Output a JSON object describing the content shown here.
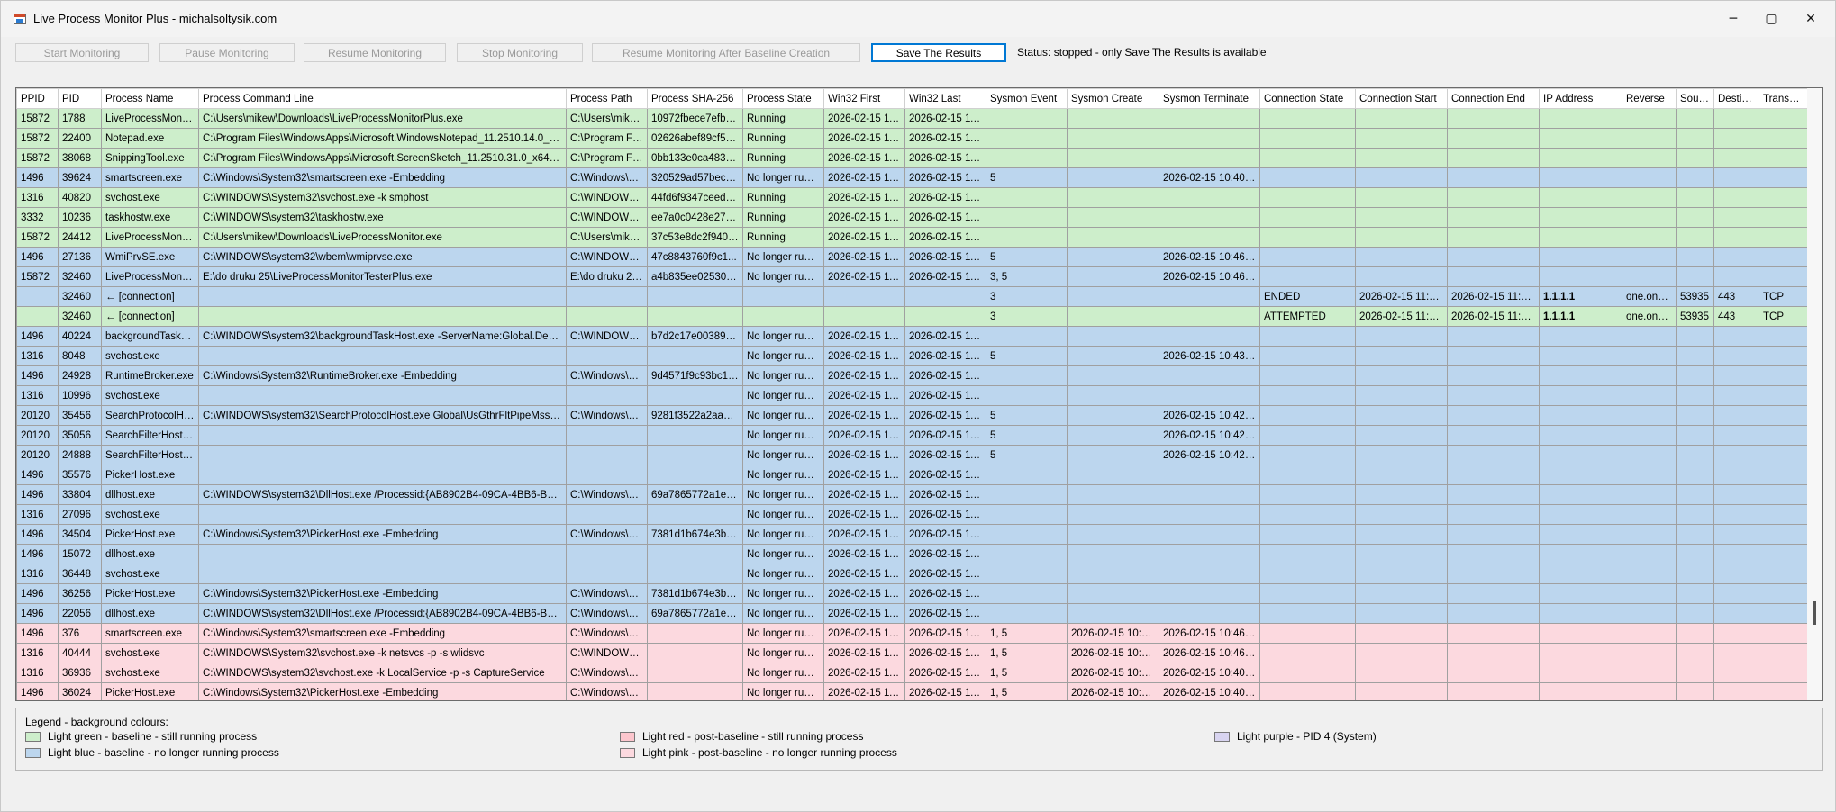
{
  "window": {
    "title": "Live Process Monitor Plus - michalsoltysik.com",
    "minimize_icon": "minimize-icon",
    "maximize_icon": "maximize-icon",
    "close_icon": "close-icon"
  },
  "toolbar": {
    "start_label": "Start Monitoring",
    "pause_label": "Pause Monitoring",
    "resume_label": "Resume Monitoring",
    "stop_label": "Stop Monitoring",
    "resume_after_label": "Resume Monitoring After Baseline Creation",
    "save_label": "Save The Results",
    "status": "Status: stopped - only Save The Results is available"
  },
  "table": {
    "columns": [
      "PPID",
      "PID",
      "Process Name",
      "Process Command Line",
      "Process Path",
      "Process SHA-256",
      "Process State",
      "Win32 First",
      "Win32 Last",
      "Sysmon Event",
      "Sysmon Create",
      "Sysmon Terminate",
      "Connection State",
      "Connection Start",
      "Connection End",
      "IP Address",
      "Reverse",
      "Source",
      "Destinati",
      "Transport"
    ],
    "rows": [
      {
        "bg": "green",
        "cells": [
          "15872",
          "1788",
          "LiveProcessMonito...",
          "C:\\Users\\mikew\\Downloads\\LiveProcessMonitorPlus.exe",
          "C:\\Users\\mike...",
          "10972fbece7efb6f...",
          "Running",
          "2026-02-15 11:...",
          "2026-02-15 11:...",
          "",
          "",
          "",
          "",
          "",
          "",
          "",
          "",
          "",
          "",
          ""
        ]
      },
      {
        "bg": "green",
        "cells": [
          "15872",
          "22400",
          "Notepad.exe",
          "C:\\Program Files\\WindowsApps\\Microsoft.WindowsNotepad_11.2510.14.0_x64__...",
          "C:\\Program File...",
          "02626abef89cf5a3...",
          "Running",
          "2026-02-15 11:...",
          "2026-02-15 11:...",
          "",
          "",
          "",
          "",
          "",
          "",
          "",
          "",
          "",
          "",
          ""
        ]
      },
      {
        "bg": "green",
        "cells": [
          "15872",
          "38068",
          "SnippingTool.exe",
          "C:\\Program Files\\WindowsApps\\Microsoft.ScreenSketch_11.2510.31.0_x64__8w...",
          "C:\\Program File...",
          "0bb133e0ca483a9...",
          "Running",
          "2026-02-15 11:...",
          "2026-02-15 11:...",
          "",
          "",
          "",
          "",
          "",
          "",
          "",
          "",
          "",
          "",
          ""
        ]
      },
      {
        "bg": "blue",
        "cells": [
          "1496",
          "39624",
          "smartscreen.exe",
          "C:\\Windows\\System32\\smartscreen.exe -Embedding",
          "C:\\Windows\\S...",
          "320529ad57bec40...",
          "No longer runni...",
          "2026-02-15 11:...",
          "2026-02-15 11:...",
          "5",
          "",
          "2026-02-15 10:40:57",
          "",
          "",
          "",
          "",
          "",
          "",
          "",
          ""
        ]
      },
      {
        "bg": "green",
        "cells": [
          "1316",
          "40820",
          "svchost.exe",
          "C:\\WINDOWS\\System32\\svchost.exe -k smphost",
          "C:\\WINDOWS\\...",
          "44fd6f9347ceed57...",
          "Running",
          "2026-02-15 11:...",
          "2026-02-15 11:...",
          "",
          "",
          "",
          "",
          "",
          "",
          "",
          "",
          "",
          "",
          ""
        ]
      },
      {
        "bg": "green",
        "cells": [
          "3332",
          "10236",
          "taskhostw.exe",
          "C:\\WINDOWS\\system32\\taskhostw.exe",
          "C:\\WINDOWS\\...",
          "ee7a0c0428e27e0...",
          "Running",
          "2026-02-15 11:...",
          "2026-02-15 11:...",
          "",
          "",
          "",
          "",
          "",
          "",
          "",
          "",
          "",
          "",
          ""
        ]
      },
      {
        "bg": "green",
        "cells": [
          "15872",
          "24412",
          "LiveProcessMonito...",
          "C:\\Users\\mikew\\Downloads\\LiveProcessMonitor.exe",
          "C:\\Users\\mike...",
          "37c53e8dc2f940f1...",
          "Running",
          "2026-02-15 11:...",
          "2026-02-15 11:...",
          "",
          "",
          "",
          "",
          "",
          "",
          "",
          "",
          "",
          "",
          ""
        ]
      },
      {
        "bg": "blue",
        "cells": [
          "1496",
          "27136",
          "WmiPrvSE.exe",
          "C:\\WINDOWS\\system32\\wbem\\wmiprvse.exe",
          "C:\\WINDOWS\\...",
          "47c8843760f9c1...",
          "No longer runni...",
          "2026-02-15 11:...",
          "2026-02-15 11:...",
          "5",
          "",
          "2026-02-15 10:46:32",
          "",
          "",
          "",
          "",
          "",
          "",
          "",
          ""
        ]
      },
      {
        "bg": "blue",
        "cells": [
          "15872",
          "32460",
          "LiveProcessMonito...",
          "E:\\do druku 25\\LiveProcessMonitorTesterPlus.exe",
          "E:\\do druku 25...",
          "a4b835ee0253077...",
          "No longer runni...",
          "2026-02-15 11:...",
          "2026-02-15 11:...",
          "3, 5",
          "",
          "2026-02-15 10:46:51",
          "",
          "",
          "",
          "",
          "",
          "",
          "",
          ""
        ]
      },
      {
        "bg": "blue",
        "cells": [
          "",
          "32460",
          "   ← [connection]",
          "",
          "",
          "",
          "",
          "",
          "",
          "3",
          "",
          "",
          "ENDED",
          "2026-02-15 11:43...",
          "2026-02-15 11:46...",
          "1.1.1.1",
          "one.one...",
          "53935",
          "443",
          "TCP"
        ]
      },
      {
        "bg": "green",
        "cells": [
          "",
          "32460",
          "   ← [connection]",
          "",
          "",
          "",
          "",
          "",
          "",
          "3",
          "",
          "",
          "ATTEMPTED",
          "2026-02-15 11:43...",
          "2026-02-15 11:43...",
          "1.1.1.1",
          "one.one...",
          "53935",
          "443",
          "TCP"
        ]
      },
      {
        "bg": "blue",
        "cells": [
          "1496",
          "40224",
          "backgroundTaskH...",
          "C:\\WINDOWS\\system32\\backgroundTaskHost.exe -ServerName:Global.Desktop...",
          "C:\\WINDOWS\\...",
          "b7d2c17e0038945...",
          "No longer runni...",
          "2026-02-15 11:...",
          "2026-02-15 11:...",
          "",
          "",
          "",
          "",
          "",
          "",
          "",
          "",
          "",
          "",
          ""
        ]
      },
      {
        "bg": "blue",
        "cells": [
          "1316",
          "8048",
          "svchost.exe",
          "",
          "",
          "",
          "No longer runni...",
          "2026-02-15 11:...",
          "2026-02-15 11:...",
          "5",
          "",
          "2026-02-15 10:43:17",
          "",
          "",
          "",
          "",
          "",
          "",
          "",
          ""
        ]
      },
      {
        "bg": "blue",
        "cells": [
          "1496",
          "24928",
          "RuntimeBroker.exe",
          "C:\\Windows\\System32\\RuntimeBroker.exe -Embedding",
          "C:\\Windows\\S...",
          "9d4571f9c93bc1cf...",
          "No longer runni...",
          "2026-02-15 11:...",
          "2026-02-15 11:...",
          "",
          "",
          "",
          "",
          "",
          "",
          "",
          "",
          "",
          "",
          ""
        ]
      },
      {
        "bg": "blue",
        "cells": [
          "1316",
          "10996",
          "svchost.exe",
          "",
          "",
          "",
          "No longer runni...",
          "2026-02-15 11:...",
          "2026-02-15 11:...",
          "",
          "",
          "",
          "",
          "",
          "",
          "",
          "",
          "",
          "",
          ""
        ]
      },
      {
        "bg": "blue",
        "cells": [
          "20120",
          "35456",
          "SearchProtocolHo...",
          "C:\\WINDOWS\\system32\\SearchProtocolHost.exe Global\\UsGthrFltPipeMssGthrP...",
          "C:\\Windows\\S...",
          "9281f3522a2aa12f...",
          "No longer runni...",
          "2026-02-15 11:...",
          "2026-02-15 11:...",
          "5",
          "",
          "2026-02-15 10:42:55",
          "",
          "",
          "",
          "",
          "",
          "",
          "",
          ""
        ]
      },
      {
        "bg": "blue",
        "cells": [
          "20120",
          "35056",
          "SearchFilterHost.exe",
          "",
          "",
          "",
          "No longer runni...",
          "2026-02-15 11:...",
          "2026-02-15 11:...",
          "5",
          "",
          "2026-02-15 10:42:50",
          "",
          "",
          "",
          "",
          "",
          "",
          "",
          ""
        ]
      },
      {
        "bg": "blue",
        "cells": [
          "20120",
          "24888",
          "SearchFilterHost.exe",
          "",
          "",
          "",
          "No longer runni...",
          "2026-02-15 11:...",
          "2026-02-15 11:...",
          "5",
          "",
          "2026-02-15 10:42:50",
          "",
          "",
          "",
          "",
          "",
          "",
          "",
          ""
        ]
      },
      {
        "bg": "blue",
        "cells": [
          "1496",
          "35576",
          "PickerHost.exe",
          "",
          "",
          "",
          "No longer runni...",
          "2026-02-15 11:...",
          "2026-02-15 11:...",
          "",
          "",
          "",
          "",
          "",
          "",
          "",
          "",
          "",
          "",
          ""
        ]
      },
      {
        "bg": "blue",
        "cells": [
          "1496",
          "33804",
          "dllhost.exe",
          "C:\\WINDOWS\\system32\\DllHost.exe /Processid:{AB8902B4-09CA-4BB6-B78D-A...",
          "C:\\Windows\\S...",
          "69a7865772a1ea6...",
          "No longer runni...",
          "2026-02-15 11:...",
          "2026-02-15 11:...",
          "",
          "",
          "",
          "",
          "",
          "",
          "",
          "",
          "",
          "",
          ""
        ]
      },
      {
        "bg": "blue",
        "cells": [
          "1316",
          "27096",
          "svchost.exe",
          "",
          "",
          "",
          "No longer runni...",
          "2026-02-15 11:...",
          "2026-02-15 11:...",
          "",
          "",
          "",
          "",
          "",
          "",
          "",
          "",
          "",
          "",
          ""
        ]
      },
      {
        "bg": "blue",
        "cells": [
          "1496",
          "34504",
          "PickerHost.exe",
          "C:\\Windows\\System32\\PickerHost.exe -Embedding",
          "C:\\Windows\\S...",
          "7381d1b674e3be4...",
          "No longer runni...",
          "2026-02-15 11:...",
          "2026-02-15 11:...",
          "",
          "",
          "",
          "",
          "",
          "",
          "",
          "",
          "",
          "",
          ""
        ]
      },
      {
        "bg": "blue",
        "cells": [
          "1496",
          "15072",
          "dllhost.exe",
          "",
          "",
          "",
          "No longer runni...",
          "2026-02-15 11:...",
          "2026-02-15 11:...",
          "",
          "",
          "",
          "",
          "",
          "",
          "",
          "",
          "",
          "",
          ""
        ]
      },
      {
        "bg": "blue",
        "cells": [
          "1316",
          "36448",
          "svchost.exe",
          "",
          "",
          "",
          "No longer runni...",
          "2026-02-15 11:...",
          "2026-02-15 11:...",
          "",
          "",
          "",
          "",
          "",
          "",
          "",
          "",
          "",
          "",
          ""
        ]
      },
      {
        "bg": "blue",
        "cells": [
          "1496",
          "36256",
          "PickerHost.exe",
          "C:\\Windows\\System32\\PickerHost.exe -Embedding",
          "C:\\Windows\\S...",
          "7381d1b674e3be4...",
          "No longer runni...",
          "2026-02-15 11:...",
          "2026-02-15 11:...",
          "",
          "",
          "",
          "",
          "",
          "",
          "",
          "",
          "",
          "",
          ""
        ]
      },
      {
        "bg": "blue",
        "cells": [
          "1496",
          "22056",
          "dllhost.exe",
          "C:\\WINDOWS\\system32\\DllHost.exe /Processid:{AB8902B4-09CA-4BB6-B78D-A...",
          "C:\\Windows\\S...",
          "69a7865772a1ea6...",
          "No longer runni...",
          "2026-02-15 11:...",
          "2026-02-15 11:...",
          "",
          "",
          "",
          "",
          "",
          "",
          "",
          "",
          "",
          "",
          ""
        ]
      },
      {
        "bg": "pink",
        "cells": [
          "1496",
          "376",
          "smartscreen.exe",
          "C:\\Windows\\System32\\smartscreen.exe -Embedding",
          "C:\\Windows\\S...",
          "",
          "No longer runni...",
          "2026-02-15 11:...",
          "2026-02-15 11:...",
          "1, 5",
          "2026-02-15 10:41...",
          "2026-02-15 10:46:40",
          "",
          "",
          "",
          "",
          "",
          "",
          "",
          ""
        ]
      },
      {
        "bg": "pink",
        "cells": [
          "1316",
          "40444",
          "svchost.exe",
          "C:\\WINDOWS\\System32\\svchost.exe -k netsvcs -p -s wlidsvc",
          "C:\\WINDOWS\\...",
          "",
          "No longer runni...",
          "2026-02-15 11:...",
          "2026-02-15 11:...",
          "1, 5",
          "2026-02-15 10:43...",
          "2026-02-15 10:46:20",
          "",
          "",
          "",
          "",
          "",
          "",
          "",
          ""
        ]
      },
      {
        "bg": "pink",
        "cells": [
          "1316",
          "36936",
          "svchost.exe",
          "C:\\WINDOWS\\system32\\svchost.exe -k LocalService -p -s CaptureService",
          "C:\\Windows\\S...",
          "",
          "No longer runni...",
          "2026-02-15 11:...",
          "2026-02-15 11:...",
          "1, 5",
          "2026-02-15 10:40...",
          "2026-02-15 10:40:31",
          "",
          "",
          "",
          "",
          "",
          "",
          "",
          ""
        ]
      },
      {
        "bg": "pink",
        "cells": [
          "1496",
          "36024",
          "PickerHost.exe",
          "C:\\Windows\\System32\\PickerHost.exe -Embedding",
          "C:\\Windows\\S...",
          "",
          "No longer runni...",
          "2026-02-15 11:...",
          "2026-02-15 11:...",
          "1, 5",
          "2026-02-15 10:40...",
          "2026-02-15 10:40:41",
          "",
          "",
          "",
          "",
          "",
          "",
          "",
          ""
        ]
      }
    ]
  },
  "legend": {
    "title": "Legend - background colours:",
    "items": [
      {
        "label": "Light green - baseline - still running process",
        "color": "#cdeecb"
      },
      {
        "label": "Light blue - baseline - no longer running process",
        "color": "#bcd6ee"
      },
      {
        "label": "Light red - post-baseline - still running process",
        "color": "#fcc6cd"
      },
      {
        "label": "Light pink - post-baseline - no longer running process",
        "color": "#fcd9df"
      },
      {
        "label": "Light purple - PID 4 (System)",
        "color": "#d8d4f0"
      }
    ]
  }
}
